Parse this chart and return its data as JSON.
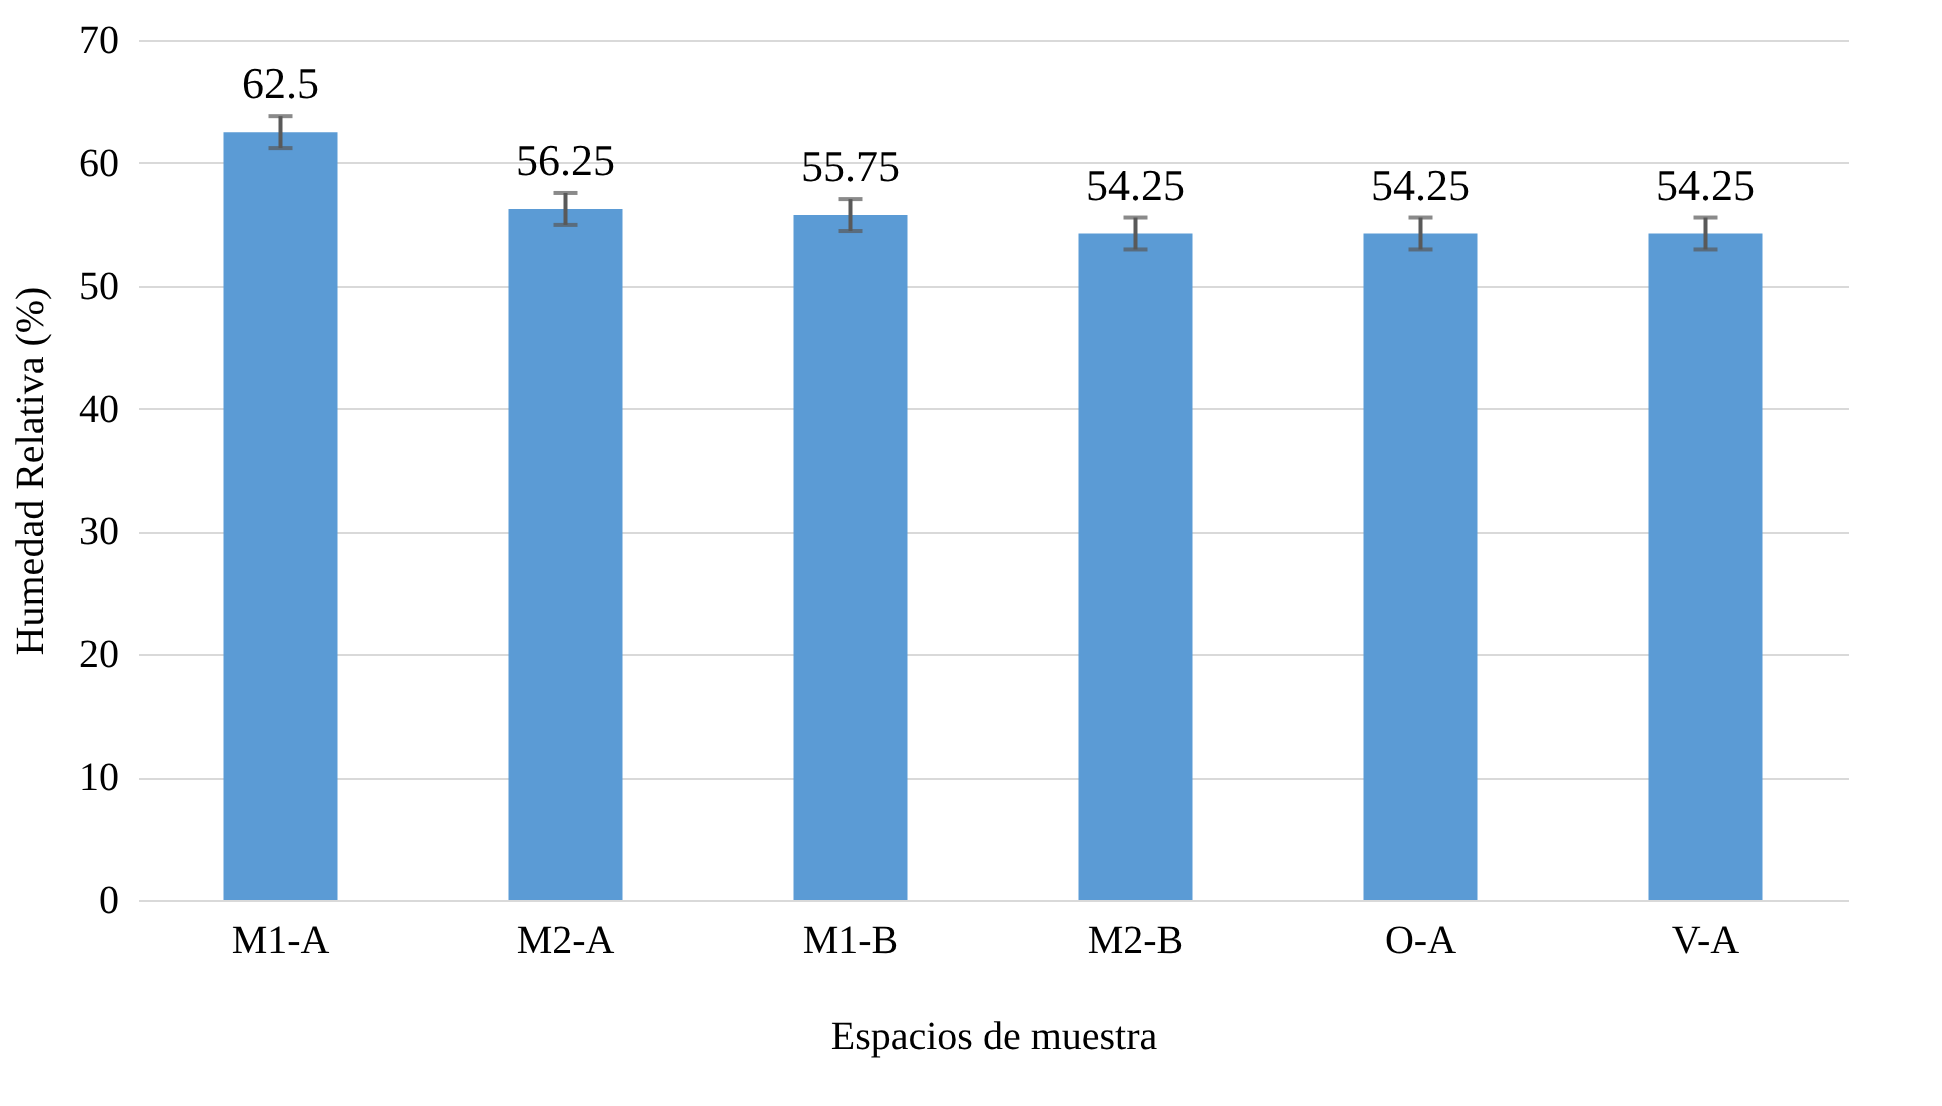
{
  "chart_data": {
    "type": "bar",
    "xlabel": "Espacios de muestra",
    "ylabel": "Humedad Relativa (%)",
    "categories": [
      "M1-A",
      "M2-A",
      "M1-B",
      "M2-B",
      "O-A",
      "V-A"
    ],
    "values": [
      62.5,
      56.25,
      55.75,
      54.25,
      54.25,
      54.25
    ],
    "errors": [
      1.3,
      1.3,
      1.3,
      1.3,
      1.3,
      1.3
    ],
    "color": "#5b9bd5",
    "ylim": [
      0,
      70
    ],
    "yticks": [
      0,
      10,
      20,
      30,
      40,
      50,
      60,
      70
    ],
    "grid": "y",
    "data_labels": true
  }
}
